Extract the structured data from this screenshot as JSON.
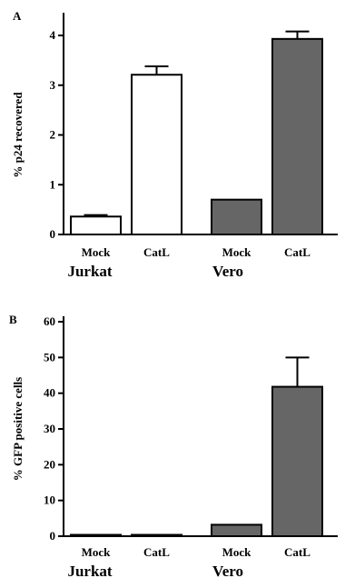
{
  "chart_data": [
    {
      "type": "bar",
      "panel_label": "A",
      "ylabel": "% p24 recovered",
      "ylim": [
        0,
        4
      ],
      "yticks": [
        0,
        1,
        2,
        3,
        4
      ],
      "categories": [
        "Mock",
        "CatL",
        "Mock",
        "CatL"
      ],
      "groups": [
        {
          "name": "Jurkat",
          "categories": [
            "Mock",
            "CatL"
          ]
        },
        {
          "name": "Vero",
          "categories": [
            "Mock",
            "CatL"
          ]
        }
      ],
      "values": [
        0.36,
        3.21,
        0.7,
        3.93
      ],
      "errors": [
        0.03,
        0.17,
        0.0,
        0.15
      ],
      "bar_colors": [
        "#ffffff",
        "#ffffff",
        "#666666",
        "#666666"
      ]
    },
    {
      "type": "bar",
      "panel_label": "B",
      "ylabel": "% GFP positive cells",
      "ylim": [
        0,
        60
      ],
      "yticks": [
        0,
        10,
        20,
        30,
        40,
        50,
        60
      ],
      "categories": [
        "Mock",
        "CatL",
        "Mock",
        "CatL"
      ],
      "groups": [
        {
          "name": "Jurkat",
          "categories": [
            "Mock",
            "CatL"
          ]
        },
        {
          "name": "Vero",
          "categories": [
            "Mock",
            "CatL"
          ]
        }
      ],
      "values": [
        0.1,
        0.3,
        3.2,
        41.8
      ],
      "errors": [
        0.0,
        0.0,
        0.0,
        8.2
      ],
      "bar_colors": [
        "#ffffff",
        "#ffffff",
        "#666666",
        "#666666"
      ]
    }
  ],
  "colors": {
    "axis": "#000000",
    "white_bar": "#ffffff",
    "gray_bar": "#666666"
  }
}
